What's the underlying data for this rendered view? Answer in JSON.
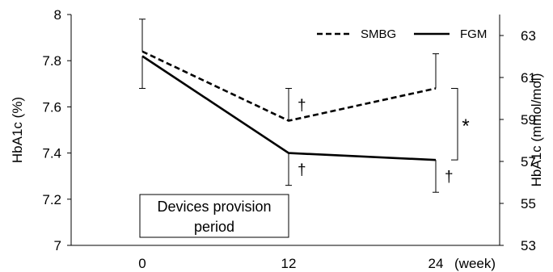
{
  "chart_data": {
    "type": "line",
    "x": [
      0,
      12,
      24
    ],
    "xtick_labels": [
      "0",
      "12",
      "24"
    ],
    "xunit": "(week)",
    "ylabel": "HbA1c (%)",
    "ylim": [
      7,
      8
    ],
    "yticks": [
      "7",
      "7.2",
      "7.4",
      "7.6",
      "7.8",
      "8"
    ],
    "y2label": "HbA1c (mmol/mol)",
    "y2lim": [
      53,
      64
    ],
    "y2ticks": [
      "53",
      "55",
      "57",
      "59",
      "61",
      "63"
    ],
    "legend_position": "top-right",
    "series": [
      {
        "name": "SMBG",
        "style": "dashed",
        "values": [
          7.84,
          7.54,
          7.68
        ],
        "error_bar": "up",
        "errors": [
          0.14,
          0.14,
          0.15
        ],
        "markers": [
          "",
          "†",
          ""
        ]
      },
      {
        "name": "FGM",
        "style": "solid",
        "values": [
          7.82,
          7.4,
          7.37
        ],
        "error_bar": "down",
        "errors": [
          0.14,
          0.14,
          0.14
        ],
        "markers": [
          "",
          "†",
          "†"
        ]
      }
    ],
    "significance_symbol": "*",
    "annotation_box": [
      "Devices provision",
      "period"
    ]
  }
}
